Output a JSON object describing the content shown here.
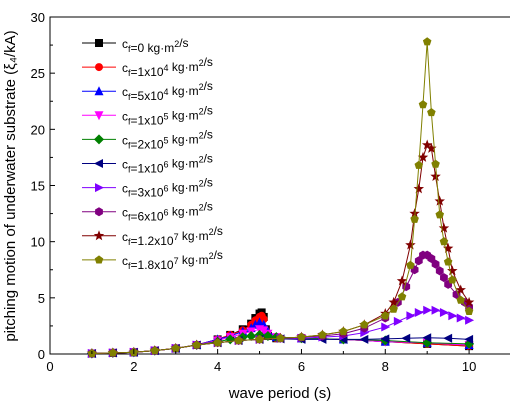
{
  "chart_data": {
    "type": "line",
    "xlabel": "wave period (s)",
    "ylabel": "pitching motion of underwater substrate (ξ₄/kA)",
    "xlim": [
      0,
      11
    ],
    "ylim": [
      0,
      30
    ],
    "xticks": [
      0,
      2,
      4,
      6,
      8,
      10
    ],
    "yticks": [
      0,
      5,
      10,
      15,
      20,
      25,
      30
    ],
    "grid": false,
    "legend_position": "top-left",
    "series": [
      {
        "name": "c_f=0 kg·m²/s",
        "label": {
          "base": "c",
          "sub": "f",
          "pre": "=0",
          "sup": "",
          "unit": " kg·m",
          "unit_sup": "2",
          "post": "/s"
        },
        "color": "#000000",
        "marker": "square",
        "x": [
          1.0,
          1.5,
          2.0,
          2.5,
          3.0,
          3.5,
          4.0,
          4.3,
          4.6,
          4.8,
          4.9,
          5.0,
          5.05,
          5.1,
          5.15,
          5.2,
          5.4,
          6.0,
          7.0,
          8.0,
          9.0,
          10.0
        ],
        "values": [
          0.05,
          0.1,
          0.15,
          0.3,
          0.5,
          0.8,
          1.3,
          1.7,
          2.2,
          2.7,
          3.2,
          3.6,
          3.7,
          3.3,
          2.2,
          1.6,
          1.4,
          1.4,
          1.3,
          1.1,
          0.9,
          0.7
        ]
      },
      {
        "name": "c_f=1x10^4 kg·m²/s",
        "label": {
          "base": "c",
          "sub": "f",
          "pre": "=1x10",
          "sup": "4",
          "unit": " kg·m",
          "unit_sup": "2",
          "post": "/s"
        },
        "color": "#ff0000",
        "marker": "circle",
        "x": [
          1.0,
          1.5,
          2.0,
          2.5,
          3.0,
          3.5,
          4.0,
          4.3,
          4.6,
          4.8,
          4.9,
          5.0,
          5.05,
          5.1,
          5.15,
          5.2,
          5.4,
          6.0,
          7.0,
          8.0,
          9.0,
          10.0
        ],
        "values": [
          0.05,
          0.1,
          0.15,
          0.3,
          0.5,
          0.8,
          1.3,
          1.7,
          2.1,
          2.6,
          3.0,
          3.3,
          3.4,
          3.1,
          2.1,
          1.6,
          1.4,
          1.4,
          1.3,
          1.1,
          0.9,
          0.7
        ]
      },
      {
        "name": "c_f=5x10^4 kg·m²/s",
        "label": {
          "base": "c",
          "sub": "f",
          "pre": "=5x10",
          "sup": "4",
          "unit": " kg·m",
          "unit_sup": "2",
          "post": "/s"
        },
        "color": "#0000ff",
        "marker": "triangle-up",
        "x": [
          1.0,
          1.5,
          2.0,
          2.5,
          3.0,
          3.5,
          4.0,
          4.3,
          4.6,
          4.8,
          4.9,
          5.0,
          5.1,
          5.2,
          5.4,
          6.0,
          7.0,
          8.0,
          9.0,
          10.0
        ],
        "values": [
          0.05,
          0.1,
          0.15,
          0.3,
          0.5,
          0.8,
          1.3,
          1.6,
          2.0,
          2.3,
          2.6,
          2.8,
          2.6,
          2.0,
          1.5,
          1.4,
          1.3,
          1.1,
          1.0,
          0.8
        ]
      },
      {
        "name": "c_f=1x10^5 kg·m²/s",
        "label": {
          "base": "c",
          "sub": "f",
          "pre": "=1x10",
          "sup": "5",
          "unit": " kg·m",
          "unit_sup": "2",
          "post": "/s"
        },
        "color": "#ff00ff",
        "marker": "triangle-down",
        "x": [
          1.0,
          1.5,
          2.0,
          2.5,
          3.0,
          3.5,
          4.0,
          4.3,
          4.6,
          4.8,
          5.0,
          5.1,
          5.2,
          5.4,
          6.0,
          7.0,
          8.0,
          9.0,
          10.0
        ],
        "values": [
          0.05,
          0.1,
          0.15,
          0.3,
          0.5,
          0.8,
          1.2,
          1.5,
          1.8,
          2.0,
          2.2,
          2.1,
          1.8,
          1.5,
          1.4,
          1.3,
          1.1,
          1.0,
          0.8
        ]
      },
      {
        "name": "c_f=2x10^5 kg·m²/s",
        "label": {
          "base": "c",
          "sub": "f",
          "pre": "=2x10",
          "sup": "5",
          "unit": " kg·m",
          "unit_sup": "2",
          "post": "/s"
        },
        "color": "#008000",
        "marker": "diamond",
        "x": [
          1.0,
          1.5,
          2.0,
          2.5,
          3.0,
          3.5,
          4.0,
          4.3,
          4.6,
          4.8,
          5.0,
          5.2,
          5.4,
          6.0,
          7.0,
          8.0,
          9.0,
          10.0
        ],
        "values": [
          0.05,
          0.1,
          0.15,
          0.3,
          0.5,
          0.8,
          1.1,
          1.3,
          1.5,
          1.6,
          1.7,
          1.6,
          1.5,
          1.4,
          1.3,
          1.2,
          1.0,
          0.9
        ]
      },
      {
        "name": "c_f=1x10^6 kg·m²/s",
        "label": {
          "base": "c",
          "sub": "f",
          "pre": "=1x10",
          "sup": "6",
          "unit": " kg·m",
          "unit_sup": "2",
          "post": "/s"
        },
        "color": "#000080",
        "marker": "triangle-left",
        "x": [
          1.0,
          1.5,
          2.0,
          2.5,
          3.0,
          3.5,
          4.0,
          4.5,
          5.0,
          5.5,
          6.0,
          6.5,
          7.0,
          7.5,
          8.0,
          8.5,
          9.0,
          9.5,
          10.0
        ],
        "values": [
          0.05,
          0.1,
          0.15,
          0.3,
          0.5,
          0.8,
          1.0,
          1.2,
          1.3,
          1.35,
          1.3,
          1.3,
          1.3,
          1.3,
          1.35,
          1.4,
          1.45,
          1.4,
          1.3
        ]
      },
      {
        "name": "c_f=3x10^6 kg·m²/s",
        "label": {
          "base": "c",
          "sub": "f",
          "pre": "=3x10",
          "sup": "6",
          "unit": " kg·m",
          "unit_sup": "2",
          "post": "/s"
        },
        "color": "#8000ff",
        "marker": "triangle-right",
        "x": [
          1.0,
          1.5,
          2.0,
          2.5,
          3.0,
          3.5,
          4.0,
          4.5,
          5.0,
          5.5,
          6.0,
          6.5,
          7.0,
          7.5,
          8.0,
          8.3,
          8.6,
          8.8,
          9.0,
          9.2,
          9.4,
          9.6,
          9.8,
          10.0
        ],
        "values": [
          0.05,
          0.1,
          0.15,
          0.3,
          0.5,
          0.8,
          1.0,
          1.2,
          1.3,
          1.4,
          1.4,
          1.5,
          1.6,
          1.9,
          2.4,
          2.9,
          3.4,
          3.7,
          3.9,
          3.9,
          3.7,
          3.4,
          3.2,
          3.0
        ]
      },
      {
        "name": "c_f=6x10^6 kg·m²/s",
        "label": {
          "base": "c",
          "sub": "f",
          "pre": "=6x10",
          "sup": "6",
          "unit": " kg·m",
          "unit_sup": "2",
          "post": "/s"
        },
        "color": "#800080",
        "marker": "hexagon",
        "x": [
          1.0,
          1.5,
          2.0,
          2.5,
          3.0,
          3.5,
          4.0,
          4.5,
          5.0,
          5.5,
          6.0,
          6.5,
          7.0,
          7.5,
          8.0,
          8.3,
          8.5,
          8.7,
          8.8,
          8.9,
          9.0,
          9.1,
          9.2,
          9.3,
          9.4,
          9.5,
          9.7,
          9.9,
          10.0
        ],
        "values": [
          0.05,
          0.1,
          0.15,
          0.3,
          0.5,
          0.8,
          1.0,
          1.2,
          1.3,
          1.4,
          1.5,
          1.6,
          1.8,
          2.3,
          3.2,
          4.6,
          6.0,
          7.5,
          8.3,
          8.8,
          8.8,
          8.5,
          8.0,
          7.4,
          6.8,
          6.2,
          5.3,
          4.6,
          4.2
        ]
      },
      {
        "name": "c_f=1.2x10^7 kg·m²/s",
        "label": {
          "base": "c",
          "sub": "f",
          "pre": "=1.2x10",
          "sup": "7",
          "unit": " kg·m",
          "unit_sup": "2",
          "post": "/s"
        },
        "color": "#800000",
        "marker": "star",
        "x": [
          1.0,
          1.5,
          2.0,
          2.5,
          3.0,
          3.5,
          4.0,
          4.5,
          5.0,
          5.5,
          6.0,
          6.5,
          7.0,
          7.5,
          8.0,
          8.2,
          8.4,
          8.6,
          8.7,
          8.8,
          8.9,
          9.0,
          9.1,
          9.2,
          9.3,
          9.4,
          9.5,
          9.6,
          9.8,
          10.0
        ],
        "values": [
          0.05,
          0.1,
          0.15,
          0.3,
          0.5,
          0.8,
          1.0,
          1.2,
          1.3,
          1.4,
          1.5,
          1.7,
          2.0,
          2.6,
          3.6,
          4.6,
          6.5,
          9.7,
          12.5,
          14.7,
          17.5,
          18.6,
          18.3,
          15.8,
          13.6,
          11.2,
          9.4,
          7.4,
          5.7,
          4.6
        ]
      },
      {
        "name": "c_f=1.8x10^7 kg·m²/s",
        "label": {
          "base": "c",
          "sub": "f",
          "pre": "=1.8x10",
          "sup": "7",
          "unit": " kg·m",
          "unit_sup": "2",
          "post": "/s"
        },
        "color": "#808000",
        "marker": "pentagon",
        "x": [
          1.0,
          1.5,
          2.0,
          2.5,
          3.0,
          3.5,
          4.0,
          4.5,
          5.0,
          5.5,
          6.0,
          6.5,
          7.0,
          7.5,
          8.0,
          8.2,
          8.4,
          8.6,
          8.7,
          8.8,
          8.9,
          9.0,
          9.1,
          9.2,
          9.3,
          9.4,
          9.5,
          9.6,
          9.8,
          10.0
        ],
        "values": [
          0.05,
          0.1,
          0.15,
          0.3,
          0.5,
          0.8,
          1.0,
          1.2,
          1.3,
          1.4,
          1.5,
          1.7,
          2.0,
          2.6,
          3.4,
          4.0,
          5.1,
          7.9,
          12.0,
          16.8,
          22.2,
          27.8,
          21.5,
          16.9,
          12.4,
          10.0,
          8.2,
          6.6,
          4.8,
          3.8
        ]
      }
    ]
  }
}
